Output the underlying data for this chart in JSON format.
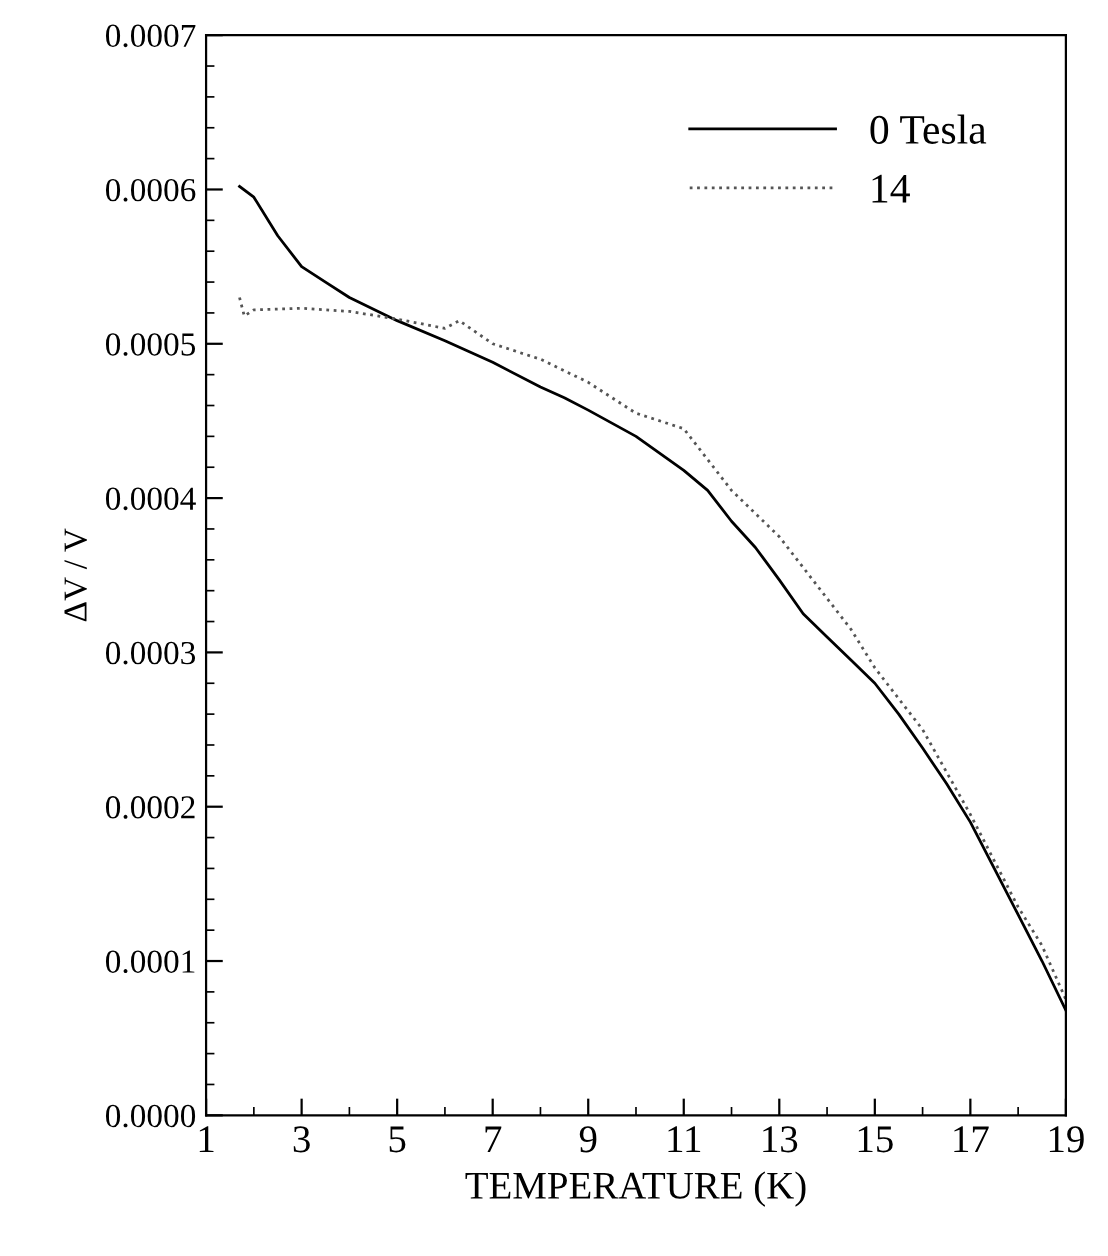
{
  "chart_data": {
    "type": "line",
    "xlabel": "TEMPERATURE (K)",
    "ylabel": "ΔV / V",
    "xlim": [
      1,
      19
    ],
    "xticks": [
      1,
      3,
      5,
      7,
      9,
      11,
      13,
      15,
      17,
      19
    ],
    "ylim": [
      0,
      0.0007
    ],
    "yticks": [
      {
        "value": 0,
        "label": "0.0000"
      },
      {
        "value": 0.0001,
        "label": "0.0001"
      },
      {
        "value": 0.0002,
        "label": "0.0002"
      },
      {
        "value": 0.0003,
        "label": "0.0003"
      },
      {
        "value": 0.0004,
        "label": "0.0004"
      },
      {
        "value": 0.0005,
        "label": "0.0005"
      },
      {
        "value": 0.0006,
        "label": "0.0006"
      },
      {
        "value": 0.0007,
        "label": "0.0007"
      }
    ],
    "grid": false,
    "legend": "top right",
    "marker": "none",
    "series": [
      {
        "name": "0 Tesla",
        "color": "#000000",
        "line_style": "solid",
        "x": [
          1.7,
          2.0,
          2.5,
          3,
          3.5,
          4,
          5,
          6,
          6.5,
          7,
          8,
          8.5,
          9,
          10,
          11,
          11.5,
          12,
          12.5,
          13,
          13.5,
          14,
          14.5,
          15,
          15.5,
          16,
          16.5,
          17,
          17.5,
          18,
          18.5,
          19
        ],
        "values": [
          0.000602,
          0.000595,
          0.00057,
          0.00055,
          0.00054,
          0.00053,
          0.000515,
          0.000502,
          0.000495,
          0.000488,
          0.000472,
          0.000465,
          0.000457,
          0.00044,
          0.000418,
          0.000405,
          0.000385,
          0.000368,
          0.000347,
          0.000325,
          0.00031,
          0.000295,
          0.00028,
          0.00026,
          0.000238,
          0.000215,
          0.00019,
          0.00016,
          0.00013,
          0.0001,
          6.8e-05
        ]
      },
      {
        "name": "14",
        "color": "#555555",
        "line_style": "dotted",
        "x": [
          1.7,
          1.8,
          2,
          3,
          4,
          5,
          6,
          6.3,
          7,
          8,
          9,
          10,
          11,
          12,
          13,
          14,
          14.5,
          15,
          16,
          17,
          18,
          18.5,
          19
        ],
        "values": [
          0.00053,
          0.000518,
          0.000522,
          0.000523,
          0.000521,
          0.000516,
          0.00051,
          0.000515,
          0.0005,
          0.00049,
          0.000475,
          0.000455,
          0.000445,
          0.000405,
          0.000375,
          0.000335,
          0.000315,
          0.00029,
          0.00025,
          0.000195,
          0.000135,
          0.00011,
          7.5e-05
        ]
      }
    ]
  }
}
